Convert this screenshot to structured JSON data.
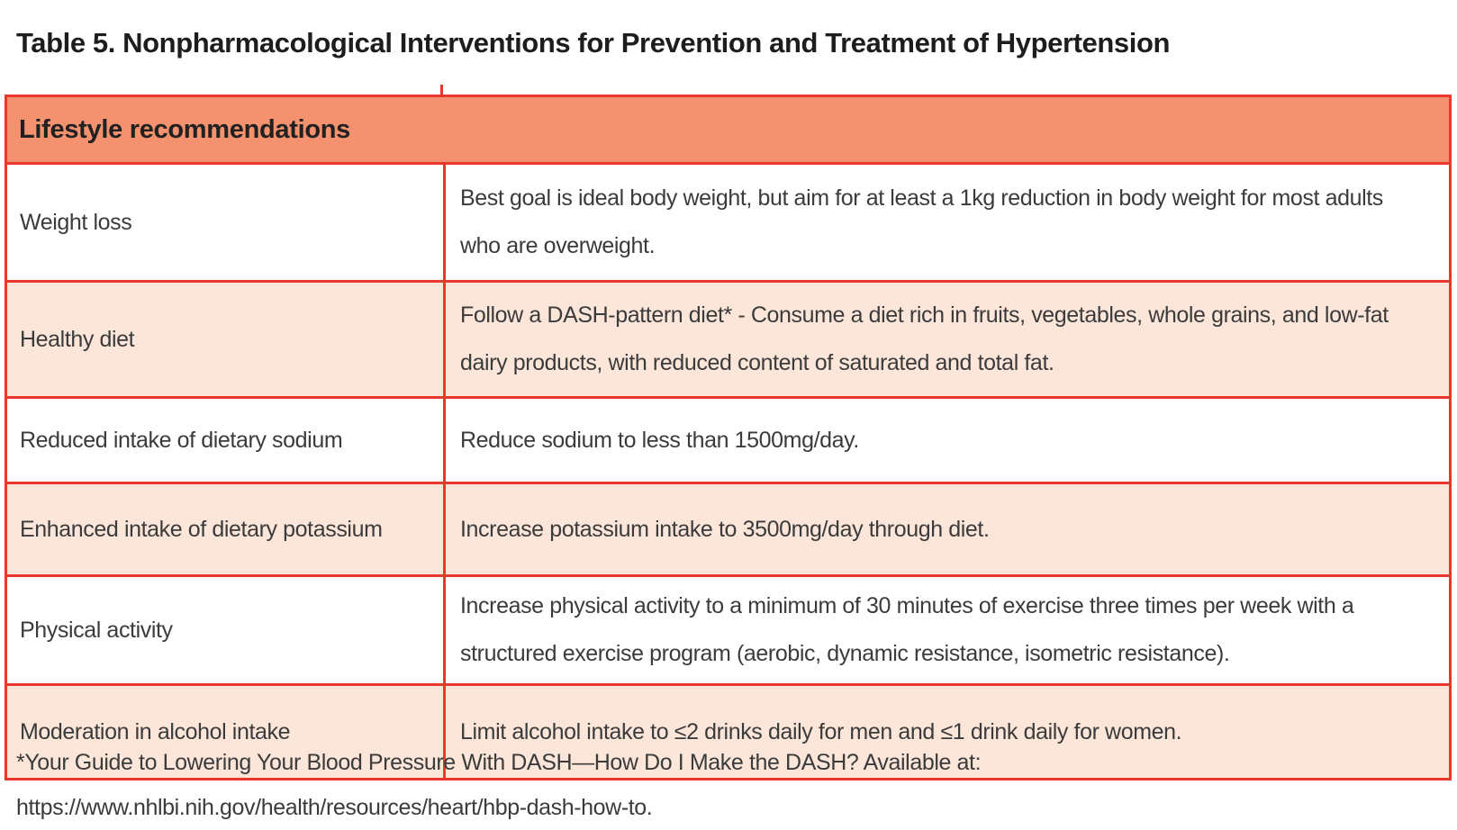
{
  "page": {
    "title": "Table 5. Nonpharmacological Interventions for Prevention and Treatment of Hypertension"
  },
  "table": {
    "header": "Lifestyle recommendations",
    "rows": [
      {
        "intervention": "Weight loss",
        "recommendation": "Best goal is ideal body weight, but aim for at least a 1kg reduction in body weight for most adults who are overweight."
      },
      {
        "intervention": "Healthy diet",
        "recommendation": "Follow a DASH-pattern diet* - Consume a diet rich in fruits, vegetables, whole grains, and low-fat dairy products, with reduced content of saturated and total fat."
      },
      {
        "intervention": "Reduced intake of dietary sodium",
        "recommendation": "Reduce sodium to less than 1500mg/day."
      },
      {
        "intervention": "Enhanced intake of dietary potassium",
        "recommendation": "Increase potassium intake to 3500mg/day through diet."
      },
      {
        "intervention": "Physical activity",
        "recommendation": "Increase physical activity to a minimum of 30 minutes of exercise three times per week with a structured exercise program (aerobic, dynamic resistance, isometric resistance)."
      },
      {
        "intervention": "Moderation in alcohol intake",
        "recommendation": "Limit alcohol intake to ≤2 drinks daily for men and ≤1 drink daily for women."
      }
    ]
  },
  "footnote": "*Your Guide to Lowering Your Blood Pressure With DASH—How Do I Make the DASH? Available at: https://www.nhlbi.nih.gov/health/resources/heart/hbp-dash-how-to.",
  "colors": {
    "header_bg": "#f4916e",
    "alt_row_bg": "#fce6da",
    "border": "#e9392b",
    "body_text": "#3b3b3b",
    "title_text": "#1d1d1d"
  }
}
